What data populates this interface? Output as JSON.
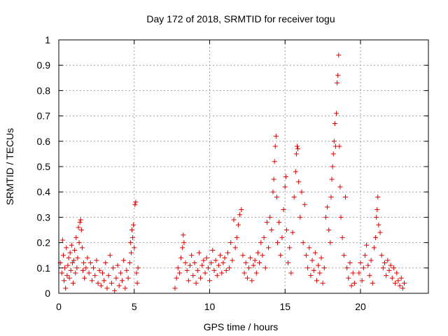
{
  "chart_data": {
    "type": "scatter",
    "title": "Day 172 of 2018, SRMTID for receiver togu",
    "xlabel": "GPS time / hours",
    "ylabel": "SRMTID / TECUs",
    "xlim": [
      0,
      24.5
    ],
    "ylim": [
      0,
      1
    ],
    "xticks": [
      0,
      5,
      10,
      15,
      20
    ],
    "yticks": [
      0,
      0.1,
      0.2,
      0.3,
      0.4,
      0.5,
      0.6,
      0.7,
      0.8,
      0.9,
      1
    ],
    "ytick_labels": [
      "0",
      "0.1",
      "0.2",
      "0.3",
      "0.4",
      "0.5",
      "0.6",
      "0.7",
      "0.8",
      "0.9",
      "1"
    ],
    "grid": true,
    "marker": "+",
    "color": "#e00000",
    "series": [
      {
        "name": "SRMTID",
        "points": [
          [
            0.1,
            0.12
          ],
          [
            0.2,
            0.08
          ],
          [
            0.25,
            0.21
          ],
          [
            0.3,
            0.15
          ],
          [
            0.35,
            0.05
          ],
          [
            0.4,
            0.1
          ],
          [
            0.45,
            0.02
          ],
          [
            0.5,
            0.18
          ],
          [
            0.55,
            0.07
          ],
          [
            0.6,
            0.11
          ],
          [
            0.65,
            0.14
          ],
          [
            0.7,
            0.06
          ],
          [
            0.75,
            0.16
          ],
          [
            0.8,
            0.09
          ],
          [
            0.85,
            0.19
          ],
          [
            0.9,
            0.12
          ],
          [
            0.95,
            0.04
          ],
          [
            1.0,
            0.13
          ],
          [
            1.05,
            0.17
          ],
          [
            1.1,
            0.08
          ],
          [
            1.15,
            0.22
          ],
          [
            1.2,
            0.1
          ],
          [
            1.25,
            0.14
          ],
          [
            1.3,
            0.26
          ],
          [
            1.35,
            0.2
          ],
          [
            1.4,
            0.28
          ],
          [
            1.45,
            0.29
          ],
          [
            1.5,
            0.25
          ],
          [
            1.55,
            0.18
          ],
          [
            1.6,
            0.09
          ],
          [
            1.65,
            0.12
          ],
          [
            1.7,
            0.06
          ],
          [
            1.8,
            0.1
          ],
          [
            1.9,
            0.14
          ],
          [
            2.0,
            0.08
          ],
          [
            2.1,
            0.12
          ],
          [
            2.2,
            0.05
          ],
          [
            2.3,
            0.1
          ],
          [
            2.4,
            0.07
          ],
          [
            2.5,
            0.13
          ],
          [
            2.6,
            0.04
          ],
          [
            2.7,
            0.09
          ],
          [
            2.8,
            0.03
          ],
          [
            2.9,
            0.08
          ],
          [
            3.0,
            0.05
          ],
          [
            3.1,
            0.12
          ],
          [
            3.2,
            0.02
          ],
          [
            3.3,
            0.07
          ],
          [
            3.4,
            0.15
          ],
          [
            3.5,
            0.04
          ],
          [
            3.6,
            0.1
          ],
          [
            3.7,
            0.01
          ],
          [
            3.8,
            0.06
          ],
          [
            3.9,
            0.11
          ],
          [
            4.0,
            0.03
          ],
          [
            4.1,
            0.08
          ],
          [
            4.2,
            0.05
          ],
          [
            4.3,
            0.13
          ],
          [
            4.4,
            0.02
          ],
          [
            4.5,
            0.09
          ],
          [
            4.6,
            0.06
          ],
          [
            4.7,
            0.12
          ],
          [
            4.75,
            0.2
          ],
          [
            4.8,
            0.16
          ],
          [
            4.85,
            0.25
          ],
          [
            4.9,
            0.22
          ],
          [
            4.95,
            0.27
          ],
          [
            5.0,
            0.18
          ],
          [
            5.05,
            0.35
          ],
          [
            5.1,
            0.36
          ],
          [
            5.15,
            0.08
          ],
          [
            5.2,
            0.04
          ],
          [
            5.25,
            0.1
          ],
          [
            7.7,
            0.02
          ],
          [
            7.8,
            0.06
          ],
          [
            7.9,
            0.1
          ],
          [
            8.0,
            0.08
          ],
          [
            8.1,
            0.14
          ],
          [
            8.2,
            0.18
          ],
          [
            8.25,
            0.23
          ],
          [
            8.3,
            0.2
          ],
          [
            8.4,
            0.12
          ],
          [
            8.5,
            0.09
          ],
          [
            8.6,
            0.05
          ],
          [
            8.7,
            0.11
          ],
          [
            8.8,
            0.15
          ],
          [
            8.9,
            0.07
          ],
          [
            9.0,
            0.12
          ],
          [
            9.1,
            0.04
          ],
          [
            9.2,
            0.09
          ],
          [
            9.3,
            0.16
          ],
          [
            9.4,
            0.06
          ],
          [
            9.5,
            0.11
          ],
          [
            9.6,
            0.13
          ],
          [
            9.7,
            0.08
          ],
          [
            9.8,
            0.14
          ],
          [
            9.9,
            0.1
          ],
          [
            10.0,
            0.05
          ],
          [
            10.1,
            0.12
          ],
          [
            10.2,
            0.17
          ],
          [
            10.3,
            0.09
          ],
          [
            10.4,
            0.13
          ],
          [
            10.5,
            0.07
          ],
          [
            10.6,
            0.11
          ],
          [
            10.7,
            0.15
          ],
          [
            10.8,
            0.08
          ],
          [
            10.9,
            0.12
          ],
          [
            11.0,
            0.14
          ],
          [
            11.1,
            0.09
          ],
          [
            11.2,
            0.16
          ],
          [
            11.3,
            0.1
          ],
          [
            11.4,
            0.2
          ],
          [
            11.5,
            0.13
          ],
          [
            11.6,
            0.29
          ],
          [
            11.7,
            0.18
          ],
          [
            11.8,
            0.22
          ],
          [
            11.9,
            0.27
          ],
          [
            12.0,
            0.31
          ],
          [
            12.1,
            0.33
          ],
          [
            12.2,
            0.15
          ],
          [
            12.3,
            0.08
          ],
          [
            12.4,
            0.12
          ],
          [
            12.5,
            0.06
          ],
          [
            12.6,
            0.1
          ],
          [
            12.7,
            0.14
          ],
          [
            12.8,
            0.05
          ],
          [
            12.9,
            0.11
          ],
          [
            13.0,
            0.13
          ],
          [
            13.1,
            0.08
          ],
          [
            13.2,
            0.16
          ],
          [
            13.3,
            0.12
          ],
          [
            13.4,
            0.2
          ],
          [
            13.5,
            0.15
          ],
          [
            13.6,
            0.22
          ],
          [
            13.7,
            0.1
          ],
          [
            13.8,
            0.28
          ],
          [
            13.9,
            0.18
          ],
          [
            14.0,
            0.3
          ],
          [
            14.1,
            0.25
          ],
          [
            14.2,
            0.4
          ],
          [
            14.25,
            0.45
          ],
          [
            14.3,
            0.52
          ],
          [
            14.35,
            0.58
          ],
          [
            14.4,
            0.62
          ],
          [
            14.45,
            0.38
          ],
          [
            14.5,
            0.2
          ],
          [
            14.6,
            0.28
          ],
          [
            14.7,
            0.15
          ],
          [
            14.8,
            0.22
          ],
          [
            14.9,
            0.33
          ],
          [
            15.0,
            0.42
          ],
          [
            15.05,
            0.46
          ],
          [
            15.1,
            0.25
          ],
          [
            15.2,
            0.12
          ],
          [
            15.3,
            0.18
          ],
          [
            15.4,
            0.08
          ],
          [
            15.5,
            0.24
          ],
          [
            15.6,
            0.38
          ],
          [
            15.7,
            0.48
          ],
          [
            15.75,
            0.55
          ],
          [
            15.8,
            0.58
          ],
          [
            15.85,
            0.57
          ],
          [
            15.9,
            0.44
          ],
          [
            16.0,
            0.3
          ],
          [
            16.1,
            0.4
          ],
          [
            16.2,
            0.2
          ],
          [
            16.3,
            0.35
          ],
          [
            16.4,
            0.15
          ],
          [
            16.5,
            0.1
          ],
          [
            16.6,
            0.18
          ],
          [
            16.7,
            0.07
          ],
          [
            16.8,
            0.13
          ],
          [
            16.9,
            0.09
          ],
          [
            17.0,
            0.16
          ],
          [
            17.1,
            0.05
          ],
          [
            17.2,
            0.11
          ],
          [
            17.3,
            0.08
          ],
          [
            17.4,
            0.14
          ],
          [
            17.5,
            0.04
          ],
          [
            17.6,
            0.1
          ],
          [
            17.7,
            0.3
          ],
          [
            17.8,
            0.34
          ],
          [
            17.9,
            0.25
          ],
          [
            18.0,
            0.2
          ],
          [
            18.05,
            0.38
          ],
          [
            18.1,
            0.45
          ],
          [
            18.15,
            0.5
          ],
          [
            18.2,
            0.55
          ],
          [
            18.25,
            0.6
          ],
          [
            18.3,
            0.67
          ],
          [
            18.35,
            0.58
          ],
          [
            18.4,
            0.71
          ],
          [
            18.45,
            0.83
          ],
          [
            18.5,
            0.86
          ],
          [
            18.55,
            0.94
          ],
          [
            18.6,
            0.58
          ],
          [
            18.65,
            0.42
          ],
          [
            18.7,
            0.3
          ],
          [
            18.8,
            0.22
          ],
          [
            18.9,
            0.15
          ],
          [
            19.0,
            0.38
          ],
          [
            19.1,
            0.1
          ],
          [
            19.2,
            0.06
          ],
          [
            19.3,
            0.12
          ],
          [
            19.4,
            0.03
          ],
          [
            19.5,
            0.08
          ],
          [
            19.6,
            0.04
          ],
          [
            19.9,
            0.08
          ],
          [
            20.0,
            0.12
          ],
          [
            20.1,
            0.05
          ],
          [
            20.2,
            0.1
          ],
          [
            20.3,
            0.15
          ],
          [
            20.4,
            0.19
          ],
          [
            20.5,
            0.11
          ],
          [
            20.6,
            0.07
          ],
          [
            20.7,
            0.13
          ],
          [
            20.8,
            0.04
          ],
          [
            20.9,
            0.18
          ],
          [
            21.0,
            0.22
          ],
          [
            21.05,
            0.3
          ],
          [
            21.1,
            0.33
          ],
          [
            21.15,
            0.38
          ],
          [
            21.2,
            0.27
          ],
          [
            21.3,
            0.24
          ],
          [
            21.4,
            0.15
          ],
          [
            21.5,
            0.1
          ],
          [
            21.6,
            0.12
          ],
          [
            21.7,
            0.07
          ],
          [
            21.8,
            0.13
          ],
          [
            21.9,
            0.09
          ],
          [
            22.0,
            0.11
          ],
          [
            22.1,
            0.06
          ],
          [
            22.2,
            0.1
          ],
          [
            22.3,
            0.04
          ],
          [
            22.4,
            0.08
          ],
          [
            22.5,
            0.05
          ],
          [
            22.6,
            0.03
          ],
          [
            22.7,
            0.06
          ],
          [
            22.8,
            0.02
          ],
          [
            22.9,
            0.04
          ]
        ]
      }
    ]
  }
}
